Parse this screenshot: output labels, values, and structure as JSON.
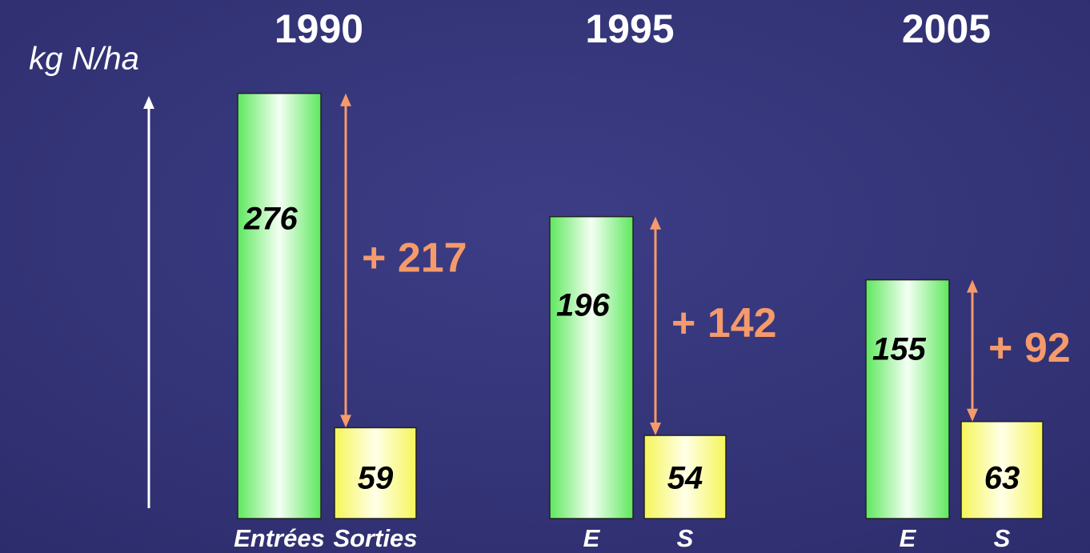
{
  "chart_data": {
    "type": "bar",
    "y_label": "kg N/ha",
    "groups": [
      {
        "title": "1990",
        "categories": [
          "Entrées",
          "Sorties"
        ],
        "values": [
          276,
          59
        ],
        "difference": {
          "value": 217,
          "label": "+ 217"
        }
      },
      {
        "title": "1995",
        "categories": [
          "E",
          "S"
        ],
        "values": [
          196,
          54
        ],
        "difference": {
          "value": 142,
          "label": "+ 142"
        }
      },
      {
        "title": "2005",
        "categories": [
          "E",
          "S"
        ],
        "values": [
          155,
          63
        ],
        "difference": {
          "value": 92,
          "label": "+ 92"
        }
      }
    ],
    "colors": [
      "#5ee85e",
      "#f5f55a"
    ],
    "difference_color": "#f59a6a"
  }
}
